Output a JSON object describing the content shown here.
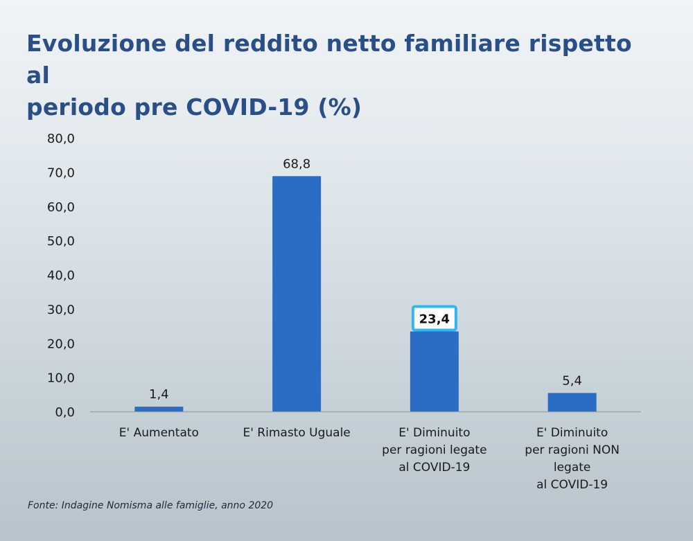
{
  "title_line1": "Evoluzione del reddito netto familiare rispetto al",
  "title_line2": "periodo pre COVID-19 (%)",
  "source": "Fonte: Indagine Nomisma alle famiglie, anno 2020",
  "colors": {
    "bar": "#2b6cc4",
    "title": "#2a4f86",
    "highlight": "#33b6f0"
  },
  "chart_data": {
    "type": "bar",
    "title": "Evoluzione del reddito netto familiare rispetto al periodo pre COVID-19 (%)",
    "categories": [
      [
        "E' Aumentato"
      ],
      [
        "E' Rimasto Uguale"
      ],
      [
        "E' Diminuito",
        "per ragioni legate",
        "al COVID-19"
      ],
      [
        "E' Diminuito",
        "per ragioni NON",
        "legate",
        "al COVID-19"
      ]
    ],
    "values": [
      1.4,
      68.8,
      23.4,
      5.4
    ],
    "value_labels": [
      "1,4",
      "68,8",
      "23,4",
      "5,4"
    ],
    "highlighted_index": 2,
    "ylim": [
      0,
      80
    ],
    "yticks": [
      "0,0",
      "10,0",
      "20,0",
      "30,0",
      "40,0",
      "50,0",
      "60,0",
      "70,0",
      "80,0"
    ],
    "grid": false,
    "legend": "none"
  }
}
